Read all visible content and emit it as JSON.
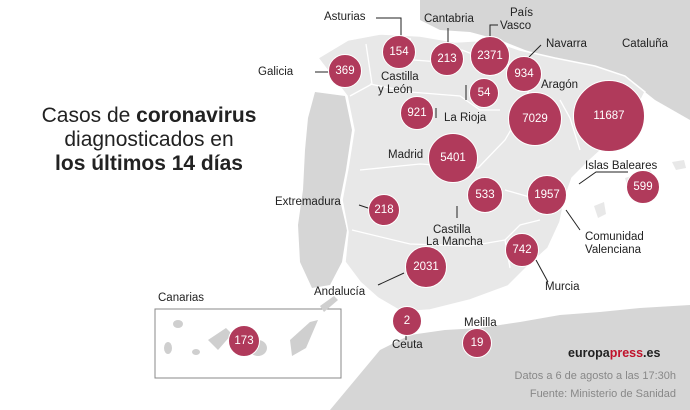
{
  "title": {
    "line1_plain": "Casos de ",
    "line1_bold": "coronavirus",
    "line2": "diagnosticados en",
    "line3_bold": "los últimos 14 días"
  },
  "regions": {
    "asturias": {
      "name": "Asturias",
      "cases": "154"
    },
    "cantabria": {
      "name": "Cantabria",
      "cases": "213"
    },
    "pais_vasco": {
      "name_line1": "País",
      "name_line2": "Vasco",
      "cases": "2371"
    },
    "navarra": {
      "name": "Navarra",
      "cases": "934"
    },
    "cataluna": {
      "name": "Cataluña",
      "cases": "11687"
    },
    "galicia": {
      "name": "Galicia",
      "cases": "369"
    },
    "castilla_leon": {
      "name_line1": "Castilla",
      "name_line2": "y León",
      "cases": "921"
    },
    "la_rioja": {
      "name": "La Rioja",
      "cases": "54"
    },
    "aragon": {
      "name": "Aragón",
      "cases": "7029"
    },
    "madrid": {
      "name": "Madrid",
      "cases": "5401"
    },
    "baleares": {
      "name": "Islas Baleares",
      "cases": "599"
    },
    "extremadura": {
      "name": "Extremadura",
      "cases": "218"
    },
    "castilla_mancha": {
      "name_line1": "Castilla",
      "name_line2": "La Mancha",
      "cases": "533"
    },
    "valenciana": {
      "name_line1": "Comunidad",
      "name_line2": "Valenciana",
      "cases": "1957"
    },
    "murcia": {
      "name": "Murcia",
      "cases": "742"
    },
    "andalucia": {
      "name": "Andalucía",
      "cases": "2031"
    },
    "ceuta": {
      "name": "Ceuta",
      "cases": "2"
    },
    "melilla": {
      "name": "Melilla",
      "cases": "19"
    },
    "canarias": {
      "name": "Canarias",
      "cases": "173"
    }
  },
  "branding": {
    "brand_main": "europa",
    "brand_accent": "press",
    "brand_tld": ".es"
  },
  "footer": {
    "date_note": "Datos a 6 de agosto a las 17:30h",
    "source": "Fuente: Ministerio de Sanidad"
  },
  "colors": {
    "bubble": "#b03a5b",
    "land": "#e8e8e8",
    "sea": "#ffffff",
    "neighbors": "#d4d4d4"
  }
}
